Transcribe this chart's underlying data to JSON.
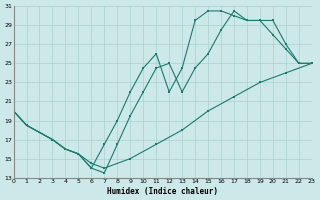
{
  "xlabel": "Humidex (Indice chaleur)",
  "xlim": [
    0,
    23
  ],
  "ylim": [
    13,
    31
  ],
  "xticks": [
    0,
    1,
    2,
    3,
    4,
    5,
    6,
    7,
    8,
    9,
    10,
    11,
    12,
    13,
    14,
    15,
    16,
    17,
    18,
    19,
    20,
    21,
    22,
    23
  ],
  "yticks": [
    13,
    15,
    17,
    19,
    21,
    23,
    25,
    27,
    29,
    31
  ],
  "background_color": "#cce8e8",
  "grid_color": "#aad0d0",
  "line_color": "#1a7a6e",
  "line1_x": [
    0,
    1,
    3,
    4,
    5,
    6,
    7,
    8,
    9,
    10,
    11,
    12,
    13,
    14,
    15,
    16,
    17,
    18,
    19,
    20,
    21,
    22,
    23
  ],
  "line1_y": [
    20,
    18.5,
    17,
    16,
    15.5,
    14,
    16.5,
    19,
    22,
    24.5,
    26,
    22,
    24.5,
    29.5,
    30.5,
    30.5,
    30,
    29.5,
    29.5,
    28,
    26.5,
    25,
    25
  ],
  "line2_x": [
    0,
    1,
    3,
    4,
    5,
    6,
    7,
    8,
    9,
    10,
    11,
    12,
    13,
    14,
    15,
    16,
    17,
    18,
    19,
    20,
    21,
    22,
    23
  ],
  "line2_y": [
    20,
    18.5,
    17,
    16,
    15.5,
    14,
    13.5,
    16.5,
    19.5,
    22,
    24.5,
    25,
    22,
    24.5,
    26,
    28.5,
    30.5,
    29.5,
    29.5,
    29.5,
    27,
    25,
    25
  ],
  "line3_x": [
    0,
    1,
    3,
    4,
    5,
    6,
    7,
    9,
    11,
    13,
    15,
    17,
    19,
    21,
    23
  ],
  "line3_y": [
    20,
    18.5,
    17,
    16,
    15.5,
    14.5,
    14,
    15,
    16.5,
    18,
    20,
    21.5,
    23,
    24,
    25
  ]
}
